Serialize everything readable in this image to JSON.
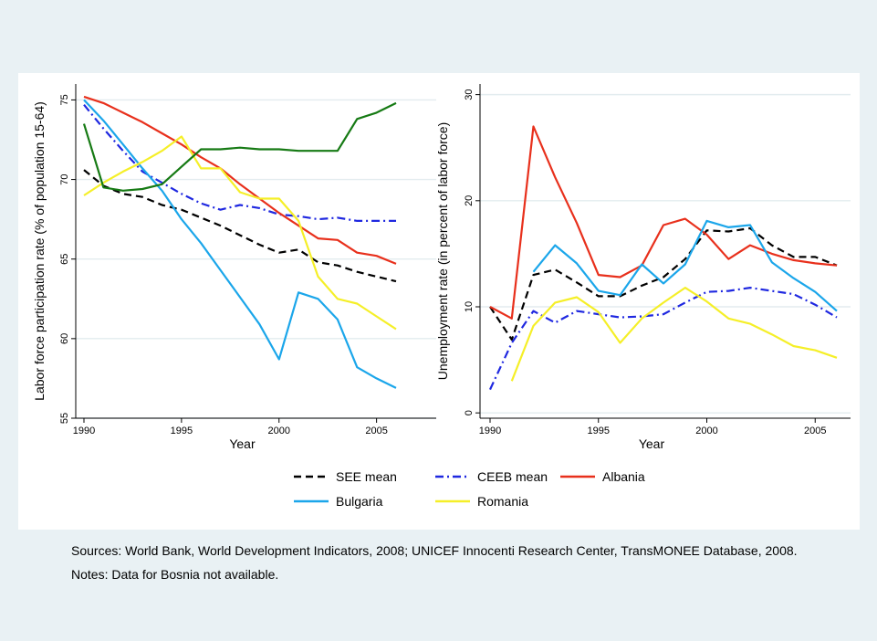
{
  "chart_data": [
    {
      "type": "line",
      "xlabel": "Year",
      "ylabel": "Labor force participation rate (% of population 15-64)",
      "xlim": [
        1990,
        2006
      ],
      "ylim": [
        55,
        76
      ],
      "x_ticks": [
        "1990",
        "1995",
        "2000",
        "2005"
      ],
      "y_ticks": [
        "55",
        "60",
        "65",
        "70",
        "75"
      ],
      "grid": true,
      "x": [
        1990,
        1991,
        1992,
        1993,
        1994,
        1995,
        1996,
        1997,
        1998,
        1999,
        2000,
        2001,
        2002,
        2003,
        2004,
        2005,
        2006
      ],
      "series": [
        {
          "key": "see",
          "color": "#000000",
          "dash": "dashed",
          "values": [
            70.6,
            69.6,
            69.1,
            68.9,
            68.4,
            68.1,
            67.6,
            67.1,
            66.5,
            65.9,
            65.4,
            65.6,
            64.8,
            64.6,
            64.2,
            63.9,
            63.6
          ]
        },
        {
          "key": "ceeb",
          "color": "#1f28e0",
          "dash": "dashdot",
          "values": [
            74.7,
            73.2,
            71.8,
            70.5,
            69.8,
            69.1,
            68.5,
            68.1,
            68.4,
            68.2,
            67.8,
            67.7,
            67.5,
            67.6,
            67.4,
            67.4,
            67.4
          ]
        },
        {
          "key": "albania",
          "color": "#e8301c",
          "dash": "solid",
          "values": [
            75.2,
            74.8,
            74.2,
            73.6,
            72.9,
            72.2,
            71.4,
            70.7,
            69.7,
            68.8,
            67.9,
            67.1,
            66.3,
            66.2,
            65.4,
            65.2,
            64.7
          ]
        },
        {
          "key": "bulgaria",
          "color": "#1ba6ea",
          "dash": "solid",
          "values": [
            75.0,
            73.7,
            72.2,
            70.7,
            69.3,
            67.5,
            66.0,
            64.3,
            62.6,
            60.9,
            58.7,
            62.9,
            62.5,
            61.2,
            58.2,
            57.5,
            56.9
          ]
        },
        {
          "key": "romania",
          "color": "#f5ef28",
          "dash": "solid",
          "values": [
            69.0,
            69.8,
            70.5,
            71.1,
            71.8,
            72.7,
            70.7,
            70.7,
            69.2,
            68.8,
            68.8,
            67.4,
            63.9,
            62.5,
            62.2,
            61.4,
            60.6
          ]
        },
        {
          "key": "green",
          "color": "#167a14",
          "dash": "solid",
          "values": [
            73.5,
            69.5,
            69.3,
            69.4,
            69.7,
            70.8,
            71.9,
            71.9,
            72.0,
            71.9,
            71.9,
            71.8,
            71.8,
            71.8,
            73.8,
            74.2,
            74.8
          ]
        }
      ]
    },
    {
      "type": "line",
      "xlabel": "Year",
      "ylabel": "Unemployment rate (in percent of labor force)",
      "xlim": [
        1990,
        2006
      ],
      "ylim": [
        -0.5,
        31
      ],
      "x_ticks": [
        "1990",
        "1995",
        "2000",
        "2005"
      ],
      "y_ticks": [
        "0",
        "10",
        "20",
        "30"
      ],
      "grid": true,
      "x": [
        1990,
        1991,
        1992,
        1993,
        1994,
        1995,
        1996,
        1997,
        1998,
        1999,
        2000,
        2001,
        2002,
        2003,
        2004,
        2005,
        2006
      ],
      "series": [
        {
          "key": "see",
          "color": "#000000",
          "dash": "dashed",
          "values": [
            10.0,
            6.9,
            13.0,
            13.5,
            12.3,
            11.0,
            11.0,
            12.0,
            12.8,
            14.5,
            17.2,
            17.1,
            17.4,
            15.8,
            14.7,
            14.7,
            13.9
          ]
        },
        {
          "key": "ceeb",
          "color": "#1f28e0",
          "dash": "dashdot",
          "values": [
            2.2,
            6.6,
            9.6,
            8.5,
            9.6,
            9.3,
            9.0,
            9.1,
            9.3,
            10.4,
            11.4,
            11.5,
            11.8,
            11.5,
            11.2,
            10.2,
            9.0
          ]
        },
        {
          "key": "albania",
          "color": "#e8301c",
          "dash": "solid",
          "values": [
            10.0,
            8.9,
            27.0,
            22.2,
            17.9,
            13.0,
            12.8,
            13.9,
            17.7,
            18.3,
            16.8,
            14.5,
            15.8,
            15.0,
            14.4,
            14.1,
            13.9
          ]
        },
        {
          "key": "bulgaria",
          "color": "#1ba6ea",
          "dash": "solid",
          "values": [
            null,
            null,
            13.3,
            15.8,
            14.1,
            11.5,
            11.1,
            14.0,
            12.2,
            14.0,
            18.1,
            17.5,
            17.7,
            14.2,
            12.7,
            11.4,
            9.6
          ]
        },
        {
          "key": "romania",
          "color": "#f5ef28",
          "dash": "solid",
          "values": [
            null,
            3.0,
            8.2,
            10.4,
            10.9,
            9.5,
            6.6,
            8.9,
            10.4,
            11.8,
            10.5,
            8.9,
            8.4,
            7.4,
            6.3,
            5.9,
            5.2
          ]
        }
      ]
    }
  ],
  "legend": {
    "placement": "bottom",
    "items": [
      {
        "key": "see",
        "label": "SEE mean",
        "color": "#000000",
        "dash": "dashed"
      },
      {
        "key": "ceeb",
        "label": "CEEB mean",
        "color": "#1f28e0",
        "dash": "dashdot"
      },
      {
        "key": "albania",
        "label": "Albania",
        "color": "#e8301c",
        "dash": "solid"
      },
      {
        "key": "bulgaria",
        "label": "Bulgaria",
        "color": "#1ba6ea",
        "dash": "solid"
      },
      {
        "key": "romania",
        "label": "Romania",
        "color": "#f5ef28",
        "dash": "solid"
      }
    ]
  },
  "notes": {
    "sources": "Sources: World Bank, World Development Indicators, 2008; UNICEF Innocenti Research Center, TransMONEE Database, 2008.",
    "notes": "Notes: Data for Bosnia not available."
  }
}
